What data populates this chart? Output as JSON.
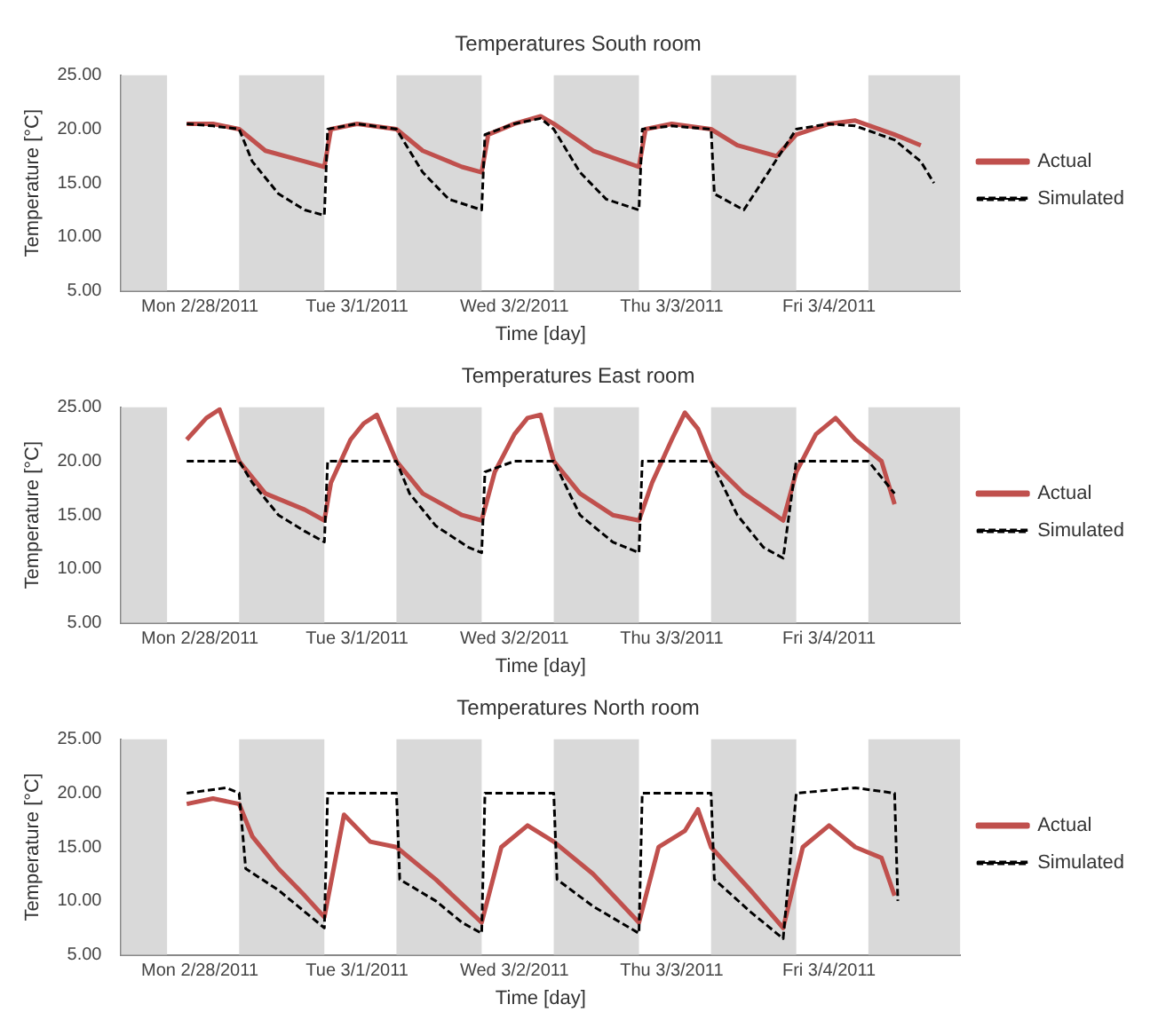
{
  "chart_data": [
    {
      "type": "line",
      "title": "Temperatures South room",
      "xlabel": "Time [day]",
      "ylabel": "Temperature [°C]",
      "xlim": [
        "2011-02-28T00:00",
        "2011-03-05T08:00"
      ],
      "ylim": [
        5,
        25
      ],
      "yticks": [
        {
          "value": 5,
          "label": "5.00"
        },
        {
          "value": 10,
          "label": "10.00"
        },
        {
          "value": 15,
          "label": "15.00"
        },
        {
          "value": 20,
          "label": "20.00"
        },
        {
          "value": 25,
          "label": "25.00"
        }
      ],
      "xticks": [
        {
          "value": "2011-02-28T12:00",
          "label": "Mon 2/28/2011"
        },
        {
          "value": "2011-03-01T12:00",
          "label": "Tue 3/1/2011"
        },
        {
          "value": "2011-03-02T12:00",
          "label": "Wed 3/2/2011"
        },
        {
          "value": "2011-03-03T12:00",
          "label": "Thu 3/3/2011"
        },
        {
          "value": "2011-03-04T12:00",
          "label": "Fri 3/4/2011"
        }
      ],
      "legend": "right",
      "grid": false,
      "bands": [
        {
          "axis": "x",
          "from": "2011-02-28T00:00",
          "to": "2011-02-28T07:00",
          "color": "#d9d9d9"
        },
        {
          "axis": "x",
          "from": "2011-02-28T18:00",
          "to": "2011-03-01T07:00",
          "color": "#d9d9d9"
        },
        {
          "axis": "x",
          "from": "2011-03-01T18:00",
          "to": "2011-03-02T07:00",
          "color": "#d9d9d9"
        },
        {
          "axis": "x",
          "from": "2011-03-02T18:00",
          "to": "2011-03-03T07:00",
          "color": "#d9d9d9"
        },
        {
          "axis": "x",
          "from": "2011-03-03T18:00",
          "to": "2011-03-04T07:00",
          "color": "#d9d9d9"
        },
        {
          "axis": "x",
          "from": "2011-03-04T18:00",
          "to": "2011-03-05T08:00",
          "color": "#d9d9d9"
        }
      ],
      "series": [
        {
          "name": "Actual",
          "color": "#c0504d",
          "line_style": "solid",
          "x": [
            "2011-02-28T10:00",
            "2011-02-28T14:00",
            "2011-02-28T18:00",
            "2011-02-28T22:00",
            "2011-03-01T04:00",
            "2011-03-01T07:00",
            "2011-03-01T08:00",
            "2011-03-01T12:00",
            "2011-03-01T18:00",
            "2011-03-01T22:00",
            "2011-03-02T04:00",
            "2011-03-02T07:00",
            "2011-03-02T08:00",
            "2011-03-02T12:00",
            "2011-03-02T16:00",
            "2011-03-02T18:00",
            "2011-03-03T00:00",
            "2011-03-03T07:00",
            "2011-03-03T08:00",
            "2011-03-03T12:00",
            "2011-03-03T18:00",
            "2011-03-03T22:00",
            "2011-03-04T04:00",
            "2011-03-04T07:00",
            "2011-03-04T12:00",
            "2011-03-04T16:00",
            "2011-03-04T22:00",
            "2011-03-05T02:00"
          ],
          "values": [
            20.5,
            20.5,
            20,
            18,
            17,
            16.5,
            20,
            20.5,
            20,
            18,
            16.5,
            16,
            19.5,
            20.5,
            21.2,
            20.5,
            18,
            16.5,
            20,
            20.5,
            20,
            18.5,
            17.5,
            19.5,
            20.5,
            20.8,
            19.5,
            18.5
          ]
        },
        {
          "name": "Simulated",
          "color": "#000000",
          "line_style": "dashed",
          "x": [
            "2011-02-28T10:00",
            "2011-02-28T14:00",
            "2011-02-28T18:00",
            "2011-02-28T20:00",
            "2011-03-01T00:00",
            "2011-03-01T04:00",
            "2011-03-01T07:00",
            "2011-03-01T07:30",
            "2011-03-01T12:00",
            "2011-03-01T18:00",
            "2011-03-01T22:00",
            "2011-03-02T02:00",
            "2011-03-02T07:00",
            "2011-03-02T07:30",
            "2011-03-02T12:00",
            "2011-03-02T16:00",
            "2011-03-02T18:00",
            "2011-03-02T22:00",
            "2011-03-03T02:00",
            "2011-03-03T07:00",
            "2011-03-03T07:30",
            "2011-03-03T12:00",
            "2011-03-03T18:00",
            "2011-03-03T18:30",
            "2011-03-03T23:00",
            "2011-03-04T07:00",
            "2011-03-04T12:00",
            "2011-03-04T16:00",
            "2011-03-04T22:00",
            "2011-03-05T02:00",
            "2011-03-05T04:00"
          ],
          "values": [
            20.5,
            20.3,
            20,
            17,
            14,
            12.5,
            12,
            20,
            20.5,
            20,
            16,
            13.5,
            12.5,
            19.5,
            20.5,
            21,
            20,
            16,
            13.5,
            12.5,
            20,
            20.3,
            20,
            14,
            12.5,
            20,
            20.5,
            20.3,
            19,
            17,
            15
          ]
        }
      ]
    },
    {
      "type": "line",
      "title": "Temperatures East room",
      "xlabel": "Time [day]",
      "ylabel": "Temperature [°C]",
      "xlim": [
        "2011-02-28T00:00",
        "2011-03-05T08:00"
      ],
      "ylim": [
        5,
        25
      ],
      "yticks": [
        {
          "value": 5,
          "label": "5.00"
        },
        {
          "value": 10,
          "label": "10.00"
        },
        {
          "value": 15,
          "label": "15.00"
        },
        {
          "value": 20,
          "label": "20.00"
        },
        {
          "value": 25,
          "label": "25.00"
        }
      ],
      "xticks": [
        {
          "value": "2011-02-28T12:00",
          "label": "Mon 2/28/2011"
        },
        {
          "value": "2011-03-01T12:00",
          "label": "Tue 3/1/2011"
        },
        {
          "value": "2011-03-02T12:00",
          "label": "Wed 3/2/2011"
        },
        {
          "value": "2011-03-03T12:00",
          "label": "Thu 3/3/2011"
        },
        {
          "value": "2011-03-04T12:00",
          "label": "Fri 3/4/2011"
        }
      ],
      "legend": "right",
      "grid": false,
      "bands": [
        {
          "axis": "x",
          "from": "2011-02-28T00:00",
          "to": "2011-02-28T07:00",
          "color": "#d9d9d9"
        },
        {
          "axis": "x",
          "from": "2011-02-28T18:00",
          "to": "2011-03-01T07:00",
          "color": "#d9d9d9"
        },
        {
          "axis": "x",
          "from": "2011-03-01T18:00",
          "to": "2011-03-02T07:00",
          "color": "#d9d9d9"
        },
        {
          "axis": "x",
          "from": "2011-03-02T18:00",
          "to": "2011-03-03T07:00",
          "color": "#d9d9d9"
        },
        {
          "axis": "x",
          "from": "2011-03-03T18:00",
          "to": "2011-03-04T07:00",
          "color": "#d9d9d9"
        },
        {
          "axis": "x",
          "from": "2011-03-04T18:00",
          "to": "2011-03-05T08:00",
          "color": "#d9d9d9"
        }
      ],
      "series": [
        {
          "name": "Actual",
          "color": "#c0504d",
          "line_style": "solid",
          "x": [
            "2011-02-28T10:00",
            "2011-02-28T13:00",
            "2011-02-28T15:00",
            "2011-02-28T18:00",
            "2011-02-28T22:00",
            "2011-03-01T04:00",
            "2011-03-01T07:00",
            "2011-03-01T08:00",
            "2011-03-01T11:00",
            "2011-03-01T13:00",
            "2011-03-01T15:00",
            "2011-03-01T18:00",
            "2011-03-01T22:00",
            "2011-03-02T04:00",
            "2011-03-02T07:00",
            "2011-03-02T09:00",
            "2011-03-02T12:00",
            "2011-03-02T14:00",
            "2011-03-02T16:00",
            "2011-03-02T18:00",
            "2011-03-02T22:00",
            "2011-03-03T03:00",
            "2011-03-03T07:00",
            "2011-03-03T09:00",
            "2011-03-03T12:00",
            "2011-03-03T14:00",
            "2011-03-03T16:00",
            "2011-03-03T18:00",
            "2011-03-03T23:00",
            "2011-03-04T05:00",
            "2011-03-04T07:00",
            "2011-03-04T10:00",
            "2011-03-04T13:00",
            "2011-03-04T16:00",
            "2011-03-04T20:00",
            "2011-03-04T22:00"
          ],
          "values": [
            22,
            24,
            24.8,
            20,
            17,
            15.5,
            14.5,
            18,
            22,
            23.5,
            24.3,
            20,
            17,
            15,
            14.5,
            19,
            22.5,
            24,
            24.3,
            20,
            17,
            15,
            14.5,
            18,
            22,
            24.5,
            23,
            20,
            17,
            14.5,
            19,
            22.5,
            24,
            22,
            20,
            16
          ]
        },
        {
          "name": "Simulated",
          "color": "#000000",
          "line_style": "dashed",
          "x": [
            "2011-02-28T10:00",
            "2011-02-28T18:00",
            "2011-02-28T20:00",
            "2011-03-01T00:00",
            "2011-03-01T04:00",
            "2011-03-01T07:00",
            "2011-03-01T07:30",
            "2011-03-01T18:00",
            "2011-03-01T20:00",
            "2011-03-02T00:00",
            "2011-03-02T05:00",
            "2011-03-02T07:00",
            "2011-03-02T07:30",
            "2011-03-02T12:00",
            "2011-03-02T18:00",
            "2011-03-02T22:00",
            "2011-03-03T03:00",
            "2011-03-03T07:00",
            "2011-03-03T07:30",
            "2011-03-03T18:00",
            "2011-03-03T22:00",
            "2011-03-04T02:00",
            "2011-03-04T05:00",
            "2011-03-04T07:00",
            "2011-03-04T18:00",
            "2011-03-04T22:00"
          ],
          "values": [
            20,
            20,
            18,
            15,
            13.5,
            12.5,
            20,
            20,
            17,
            14,
            12,
            11.5,
            19,
            20,
            20,
            15,
            12.5,
            11.5,
            20,
            20,
            15,
            12,
            11,
            20,
            20,
            17
          ]
        }
      ]
    },
    {
      "type": "line",
      "title": "Temperatures North room",
      "xlabel": "Time [day]",
      "ylabel": "Temperature [°C]",
      "xlim": [
        "2011-02-28T00:00",
        "2011-03-05T08:00"
      ],
      "ylim": [
        5,
        25
      ],
      "yticks": [
        {
          "value": 5,
          "label": "5.00"
        },
        {
          "value": 10,
          "label": "10.00"
        },
        {
          "value": 15,
          "label": "15.00"
        },
        {
          "value": 20,
          "label": "20.00"
        },
        {
          "value": 25,
          "label": "25.00"
        }
      ],
      "xticks": [
        {
          "value": "2011-02-28T12:00",
          "label": "Mon 2/28/2011"
        },
        {
          "value": "2011-03-01T12:00",
          "label": "Tue 3/1/2011"
        },
        {
          "value": "2011-03-02T12:00",
          "label": "Wed 3/2/2011"
        },
        {
          "value": "2011-03-03T12:00",
          "label": "Thu 3/3/2011"
        },
        {
          "value": "2011-03-04T12:00",
          "label": "Fri 3/4/2011"
        }
      ],
      "legend": "right",
      "grid": false,
      "bands": [
        {
          "axis": "x",
          "from": "2011-02-28T00:00",
          "to": "2011-02-28T07:00",
          "color": "#d9d9d9"
        },
        {
          "axis": "x",
          "from": "2011-02-28T18:00",
          "to": "2011-03-01T07:00",
          "color": "#d9d9d9"
        },
        {
          "axis": "x",
          "from": "2011-03-01T18:00",
          "to": "2011-03-02T07:00",
          "color": "#d9d9d9"
        },
        {
          "axis": "x",
          "from": "2011-03-02T18:00",
          "to": "2011-03-03T07:00",
          "color": "#d9d9d9"
        },
        {
          "axis": "x",
          "from": "2011-03-03T18:00",
          "to": "2011-03-04T07:00",
          "color": "#d9d9d9"
        },
        {
          "axis": "x",
          "from": "2011-03-04T18:00",
          "to": "2011-03-05T08:00",
          "color": "#d9d9d9"
        }
      ],
      "series": [
        {
          "name": "Actual",
          "color": "#c0504d",
          "line_style": "solid",
          "x": [
            "2011-02-28T10:00",
            "2011-02-28T14:00",
            "2011-02-28T18:00",
            "2011-02-28T20:00",
            "2011-03-01T00:00",
            "2011-03-01T04:00",
            "2011-03-01T07:00",
            "2011-03-01T10:00",
            "2011-03-01T14:00",
            "2011-03-01T18:00",
            "2011-03-02T00:00",
            "2011-03-02T07:00",
            "2011-03-02T10:00",
            "2011-03-02T14:00",
            "2011-03-02T18:00",
            "2011-03-03T00:00",
            "2011-03-03T07:00",
            "2011-03-03T10:00",
            "2011-03-03T14:00",
            "2011-03-03T16:00",
            "2011-03-03T18:00",
            "2011-03-04T00:00",
            "2011-03-04T05:00",
            "2011-03-04T08:00",
            "2011-03-04T12:00",
            "2011-03-04T16:00",
            "2011-03-04T20:00",
            "2011-03-04T22:00"
          ],
          "values": [
            19,
            19.5,
            19,
            16,
            13,
            10.5,
            8.5,
            18,
            15.5,
            15,
            12,
            8,
            15,
            17,
            15.5,
            12.5,
            8,
            15,
            16.5,
            18.5,
            15,
            11,
            7.5,
            15,
            17,
            15,
            14,
            10.5
          ]
        },
        {
          "name": "Simulated",
          "color": "#000000",
          "line_style": "dashed",
          "x": [
            "2011-02-28T10:00",
            "2011-02-28T16:00",
            "2011-02-28T18:00",
            "2011-02-28T19:00",
            "2011-03-01T00:00",
            "2011-03-01T04:00",
            "2011-03-01T07:00",
            "2011-03-01T07:30",
            "2011-03-01T18:00",
            "2011-03-01T18:30",
            "2011-03-02T00:00",
            "2011-03-02T04:00",
            "2011-03-02T07:00",
            "2011-03-02T07:30",
            "2011-03-02T18:00",
            "2011-03-02T18:30",
            "2011-03-03T00:00",
            "2011-03-03T07:00",
            "2011-03-03T07:30",
            "2011-03-03T18:00",
            "2011-03-03T18:30",
            "2011-03-04T00:00",
            "2011-03-04T05:00",
            "2011-03-04T07:00",
            "2011-03-04T16:00",
            "2011-03-04T22:00",
            "2011-03-04T22:30"
          ],
          "values": [
            20,
            20.5,
            20,
            13,
            11,
            9,
            7.5,
            20,
            20,
            12,
            10,
            8,
            7,
            20,
            20,
            12,
            9.5,
            7,
            20,
            20,
            12,
            9,
            6.5,
            20,
            20.5,
            20,
            10
          ]
        }
      ]
    }
  ]
}
